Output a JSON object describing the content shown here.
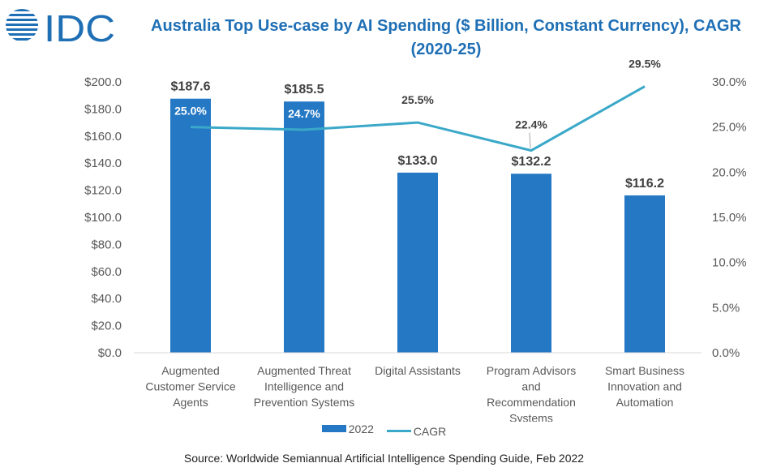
{
  "logo": {
    "text": "IDC"
  },
  "title": "Australia Top Use-case by AI Spending ($ Billion, Constant Currency), CAGR (2020-25)",
  "source": "Source: Worldwide Semiannual Artificial Intelligence Spending Guide, Feb 2022",
  "colors": {
    "bar": "#2478c4",
    "line": "#3aa8c8",
    "title": "#1f6fb5"
  },
  "chart_data": {
    "type": "bar",
    "categories": [
      [
        "Augmented",
        "Customer Service",
        "Agents"
      ],
      [
        "Augmented Threat",
        "Intelligence and",
        "Prevention Systems"
      ],
      [
        "Digital Assistants"
      ],
      [
        "Program Advisors",
        "and",
        "Recommendation",
        "Systems"
      ],
      [
        "Smart Business",
        "Innovation and",
        "Automation"
      ]
    ],
    "series": [
      {
        "name": "2022",
        "type": "bar",
        "axis": "left",
        "values": [
          187.6,
          185.5,
          133.0,
          132.2,
          116.2
        ],
        "labels": [
          "$187.6",
          "$185.5",
          "$133.0",
          "$132.2",
          "$116.2"
        ]
      },
      {
        "name": "CAGR",
        "type": "line",
        "axis": "right",
        "values": [
          25.0,
          24.7,
          25.5,
          22.4,
          29.5
        ],
        "labels": [
          "25.0%",
          "24.7%",
          "25.5%",
          "22.4%",
          "29.5%"
        ]
      }
    ],
    "y_left": {
      "ticks": [
        "$0.0",
        "$20.0",
        "$40.0",
        "$60.0",
        "$80.0",
        "$100.0",
        "$120.0",
        "$140.0",
        "$160.0",
        "$180.0",
        "$200.0"
      ],
      "range": [
        0,
        200
      ]
    },
    "y_right": {
      "ticks": [
        "0.0%",
        "5.0%",
        "10.0%",
        "15.0%",
        "20.0%",
        "25.0%",
        "30.0%"
      ],
      "range": [
        0,
        30
      ]
    },
    "legend_position": "bottom"
  }
}
